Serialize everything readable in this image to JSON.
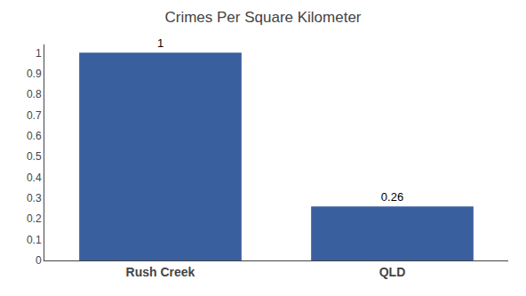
{
  "chart_data": {
    "type": "bar",
    "title": "Crimes Per Square Kilometer",
    "categories": [
      "Rush Creek",
      "QLD"
    ],
    "values": [
      1.0,
      0.26
    ],
    "color": "#3a5f9f",
    "ylim": [
      0,
      1.04
    ],
    "yticks": [
      0,
      0.1,
      0.2,
      0.3,
      0.4,
      0.5,
      0.6,
      0.7,
      0.8,
      0.9,
      1
    ],
    "grid": false,
    "data_labels": true
  }
}
